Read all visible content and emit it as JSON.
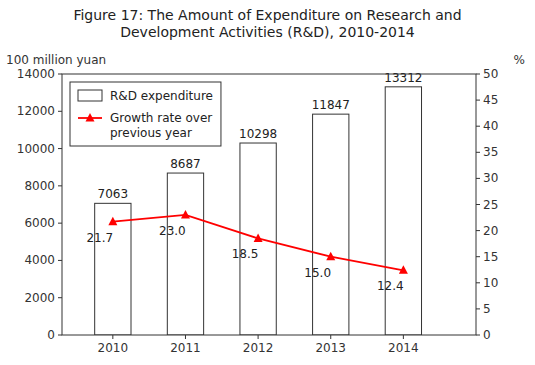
{
  "chart_data": {
    "type": "bar",
    "title": "Figure 17: The Amount of Expenditure on Research and\nDevelopment Activities (R&D), 2010-2014",
    "ylabel": "100 million yuan",
    "y2label": "%",
    "x": [
      2010,
      2011,
      2012,
      2013,
      2014
    ],
    "xlim": [
      2009.3,
      2015.0
    ],
    "xticks": [
      2010,
      2011,
      2012,
      2013,
      2014
    ],
    "ylim": [
      0,
      14000
    ],
    "yticks": [
      0,
      2000,
      4000,
      6000,
      8000,
      10000,
      12000,
      14000
    ],
    "y2lim": [
      0,
      50
    ],
    "y2ticks": [
      0,
      5,
      10,
      15,
      20,
      25,
      30,
      35,
      40,
      45,
      50
    ],
    "series": [
      {
        "name": "R&D expenditure",
        "type": "bar",
        "color": "white",
        "values": [
          7063,
          8687,
          10298,
          11847,
          13312
        ]
      },
      {
        "name": "Growth rate over\nprevious year",
        "type": "line",
        "axis": "y2",
        "color": "red",
        "marker": "triangle",
        "values": [
          21.7,
          23.0,
          18.5,
          15.0,
          12.4
        ],
        "value_labels": [
          "21.7",
          "23.0",
          "18.5",
          "15.0",
          "12.4"
        ]
      }
    ],
    "data_labels": true,
    "legend": "upper left",
    "grid": false
  }
}
